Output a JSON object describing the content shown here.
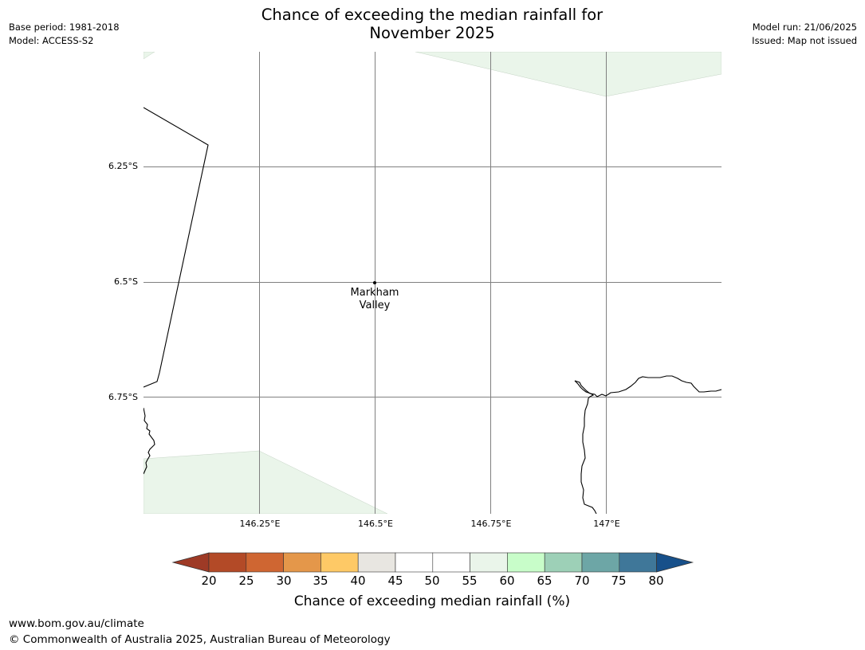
{
  "header": {
    "base_period": "Base period: 1981-2018",
    "model": "Model: ACCESS-S2",
    "title_line1": "Chance of exceeding the median rainfall for",
    "title_line2": "November 2025",
    "model_run": "Model run: 21/06/2025",
    "issued": "Issued: Map not issued"
  },
  "map": {
    "lat_labels": [
      "6.25°S",
      "6.5°S",
      "6.75°S"
    ],
    "lon_labels": [
      "146.25°E",
      "146.5°E",
      "146.75°E",
      "147°E"
    ],
    "place": {
      "line1": "Markham",
      "line2": "Valley"
    },
    "colors": {
      "fill": "#eaf5ea",
      "coast": "#000000",
      "grid": "#808080"
    }
  },
  "colorbar": {
    "ticks": [
      "20",
      "25",
      "30",
      "35",
      "40",
      "45",
      "50",
      "55",
      "60",
      "65",
      "70",
      "75",
      "80"
    ],
    "segment_colors": [
      "#9e3a26",
      "#b34a27",
      "#cf6632",
      "#e4974a",
      "#fec966",
      "#e8e6e1",
      "#ffffff",
      "#ffffff",
      "#eaf5ea",
      "#c8fdc9",
      "#9dd0b7",
      "#6da6a6",
      "#3f7799",
      "#17508a"
    ],
    "label": "Chance of exceeding median rainfall (%)"
  },
  "footer": {
    "url": "www.bom.gov.au/climate",
    "copyright": "© Commonwealth of Australia 2025, Australian Bureau of Meteorology"
  }
}
